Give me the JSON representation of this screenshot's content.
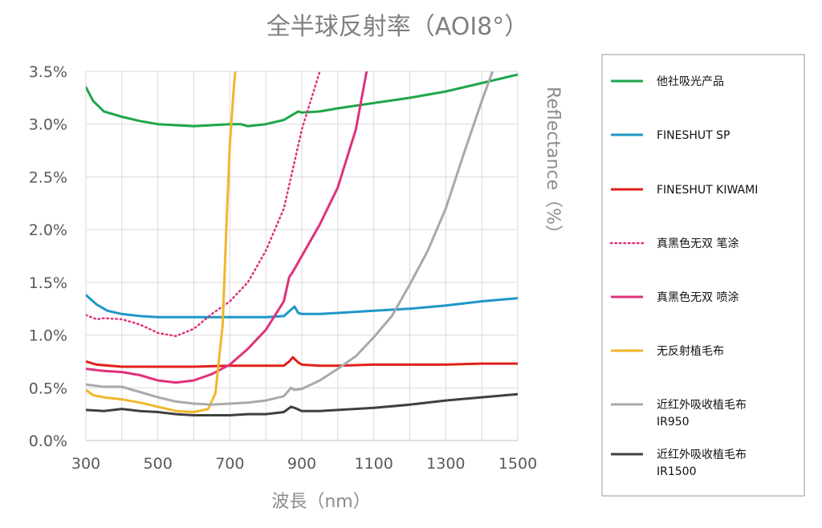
{
  "chart_data": {
    "type": "line",
    "title": "全半球反射率（AOI8°）",
    "xlabel": "波長（nm）",
    "ylabel": "Reflectance（%）",
    "xlim": [
      300,
      1500
    ],
    "ylim": [
      0,
      3.5
    ],
    "x_ticks": [
      "300",
      "500",
      "700",
      "900",
      "1100",
      "1300",
      "1500"
    ],
    "y_ticks": [
      "0.0%",
      "0.5%",
      "1.0%",
      "1.5%",
      "2.0%",
      "2.5%",
      "3.0%",
      "3.5%"
    ],
    "grid": true,
    "legend_position": "right",
    "series": [
      {
        "name": "他社吸光产品",
        "color": "#1fa64a",
        "style": "solid",
        "x": [
          300,
          320,
          350,
          400,
          450,
          500,
          550,
          600,
          650,
          700,
          730,
          750,
          800,
          850,
          870,
          890,
          900,
          950,
          1000,
          1100,
          1200,
          1300,
          1400,
          1500
        ],
        "y": [
          3.35,
          3.22,
          3.12,
          3.07,
          3.03,
          3.0,
          2.99,
          2.98,
          2.99,
          3.0,
          3.0,
          2.98,
          3.0,
          3.04,
          3.08,
          3.12,
          3.11,
          3.12,
          3.15,
          3.2,
          3.25,
          3.31,
          3.39,
          3.47
        ]
      },
      {
        "name": "FINESHUT SP",
        "color": "#1f97c7",
        "style": "solid",
        "x": [
          300,
          330,
          360,
          400,
          450,
          500,
          550,
          600,
          650,
          700,
          750,
          800,
          850,
          870,
          880,
          890,
          900,
          950,
          1000,
          1100,
          1200,
          1300,
          1400,
          1500
        ],
        "y": [
          1.38,
          1.29,
          1.23,
          1.2,
          1.18,
          1.17,
          1.17,
          1.17,
          1.17,
          1.17,
          1.17,
          1.17,
          1.18,
          1.24,
          1.27,
          1.21,
          1.2,
          1.2,
          1.21,
          1.23,
          1.25,
          1.28,
          1.32,
          1.35
        ]
      },
      {
        "name": "FINESHUT KIWAMI",
        "color": "#e0211b",
        "style": "solid",
        "x": [
          300,
          330,
          400,
          500,
          600,
          700,
          800,
          850,
          865,
          875,
          890,
          900,
          950,
          1000,
          1100,
          1200,
          1300,
          1400,
          1500
        ],
        "y": [
          0.75,
          0.72,
          0.7,
          0.7,
          0.7,
          0.71,
          0.71,
          0.71,
          0.75,
          0.79,
          0.74,
          0.72,
          0.71,
          0.71,
          0.72,
          0.72,
          0.72,
          0.73,
          0.73
        ]
      },
      {
        "name": "真黑色无双 笔涂",
        "color": "#e0317c",
        "style": "dotted",
        "x": [
          300,
          330,
          350,
          400,
          450,
          500,
          550,
          600,
          650,
          700,
          750,
          800,
          850,
          900,
          950
        ],
        "y": [
          1.19,
          1.15,
          1.16,
          1.15,
          1.1,
          1.02,
          0.99,
          1.06,
          1.2,
          1.32,
          1.5,
          1.8,
          2.2,
          2.95,
          3.5
        ]
      },
      {
        "name": "真黑色无双 喷涂",
        "color": "#e0317c",
        "style": "solid",
        "x": [
          300,
          350,
          400,
          450,
          500,
          550,
          600,
          650,
          700,
          750,
          800,
          850,
          865,
          875,
          900,
          950,
          1000,
          1050,
          1080
        ],
        "y": [
          0.68,
          0.66,
          0.65,
          0.62,
          0.57,
          0.55,
          0.57,
          0.63,
          0.72,
          0.87,
          1.05,
          1.32,
          1.55,
          1.6,
          1.75,
          2.05,
          2.4,
          2.95,
          3.5
        ]
      },
      {
        "name": "无反射植毛布",
        "color": "#f2b62b",
        "style": "solid",
        "x": [
          300,
          320,
          350,
          400,
          450,
          500,
          550,
          600,
          640,
          660,
          680,
          690,
          700,
          710,
          715
        ],
        "y": [
          0.48,
          0.43,
          0.41,
          0.39,
          0.36,
          0.32,
          0.28,
          0.27,
          0.3,
          0.45,
          1.1,
          2.0,
          2.8,
          3.3,
          3.5
        ]
      },
      {
        "name": "近红外吸收植毛布 IR950",
        "color": "#a9a9a9",
        "style": "solid",
        "x": [
          300,
          350,
          400,
          450,
          500,
          550,
          600,
          650,
          700,
          750,
          800,
          850,
          870,
          880,
          900,
          950,
          1000,
          1050,
          1100,
          1150,
          1200,
          1250,
          1300,
          1350,
          1400,
          1430
        ],
        "y": [
          0.53,
          0.51,
          0.51,
          0.46,
          0.41,
          0.37,
          0.35,
          0.34,
          0.35,
          0.36,
          0.38,
          0.42,
          0.5,
          0.48,
          0.49,
          0.57,
          0.68,
          0.8,
          0.98,
          1.18,
          1.48,
          1.8,
          2.2,
          2.72,
          3.22,
          3.5
        ]
      },
      {
        "name": "近红外吸收植毛布 IR1500",
        "color": "#404040",
        "style": "solid",
        "x": [
          300,
          350,
          400,
          450,
          500,
          550,
          600,
          650,
          700,
          750,
          800,
          850,
          870,
          880,
          900,
          950,
          1000,
          1100,
          1200,
          1300,
          1400,
          1500
        ],
        "y": [
          0.29,
          0.28,
          0.3,
          0.28,
          0.27,
          0.25,
          0.24,
          0.24,
          0.24,
          0.25,
          0.25,
          0.27,
          0.32,
          0.31,
          0.28,
          0.28,
          0.29,
          0.31,
          0.34,
          0.38,
          0.41,
          0.44
        ]
      }
    ]
  },
  "legend": {
    "items": [
      {
        "line1": "他社吸光产品",
        "line2": ""
      },
      {
        "line1": "FINESHUT SP",
        "line2": ""
      },
      {
        "line1": "FINESHUT KIWAMI",
        "line2": ""
      },
      {
        "line1": "真黑色无双 笔涂",
        "line2": ""
      },
      {
        "line1": "真黑色无双 喷涂",
        "line2": ""
      },
      {
        "line1": "无反射植毛布",
        "line2": ""
      },
      {
        "line1": "近红外吸收植毛布",
        "line2": "IR950"
      },
      {
        "line1": "近红外吸收植毛布",
        "line2": "IR1500"
      }
    ]
  }
}
